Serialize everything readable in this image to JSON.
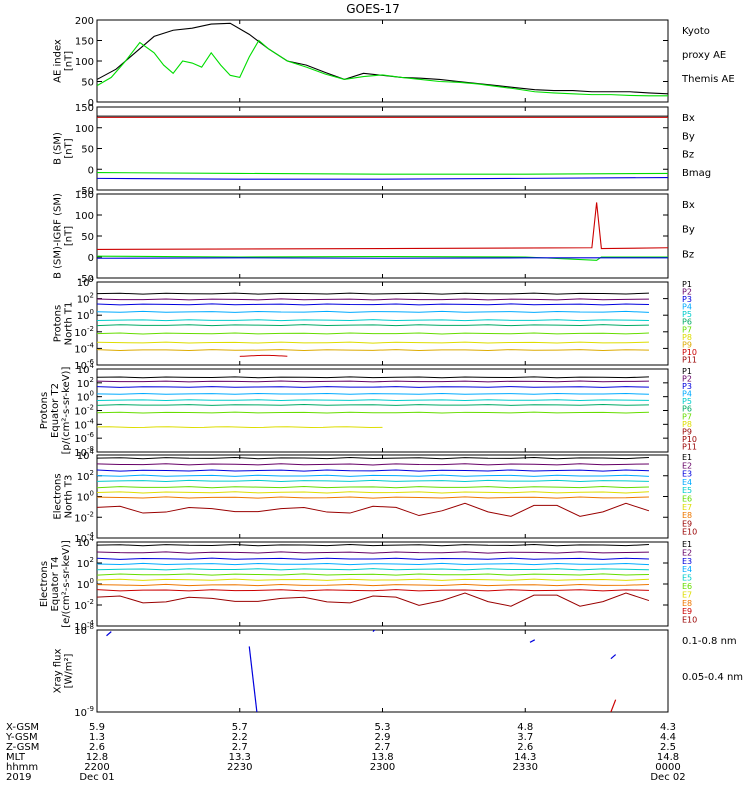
{
  "title": "GOES-17",
  "colors": {
    "black": "#000000",
    "green": "#00dd00",
    "red": "#cc0000",
    "darkred": "#990000",
    "blue": "#0000dd",
    "navy": "#000080",
    "purple": "#660066",
    "cyan": "#00cccc",
    "teal": "#00aaaa",
    "lime": "#66dd00",
    "yellow": "#dddd00",
    "gold": "#ddaa00",
    "orange": "#ee7700",
    "lightblue": "#00aaff",
    "violet": "#880088"
  },
  "chart_data": [
    {
      "id": "ae",
      "type": "line",
      "ylabel": [
        "AE index",
        "[nT]"
      ],
      "ylim": [
        0,
        200
      ],
      "yticks": [
        "0",
        "50",
        "100",
        "150",
        "200"
      ],
      "legend": [
        {
          "name": "Kyoto",
          "color": "#00dd00"
        },
        {
          "name": "proxy AE",
          "color": "#00dd00"
        },
        {
          "name": "Themis AE",
          "color": "#000000"
        }
      ],
      "series": [
        {
          "name": "Themis AE",
          "color": "#000000",
          "x": [
            0,
            4,
            8,
            12,
            16,
            20,
            24,
            28,
            32,
            36,
            40,
            44,
            48,
            52,
            56,
            60,
            64,
            68,
            72,
            76,
            80,
            84,
            88,
            92,
            96,
            100,
            104,
            108,
            112,
            116,
            120
          ],
          "y": [
            55,
            80,
            120,
            160,
            175,
            180,
            190,
            192,
            165,
            130,
            100,
            90,
            72,
            55,
            70,
            65,
            60,
            58,
            55,
            50,
            45,
            40,
            35,
            30,
            28,
            28,
            25,
            25,
            25,
            22,
            20
          ]
        },
        {
          "name": "Kyoto proxy AE",
          "color": "#00dd00",
          "x": [
            0,
            3,
            6,
            9,
            12,
            14,
            16,
            18,
            20,
            22,
            24,
            26,
            28,
            30,
            32,
            34,
            36,
            40,
            44,
            48,
            52,
            56,
            60,
            64,
            68,
            72,
            76,
            80,
            84,
            88,
            92,
            96,
            100,
            104,
            108,
            112,
            116,
            120
          ],
          "y": [
            40,
            60,
            100,
            145,
            120,
            90,
            70,
            100,
            95,
            85,
            120,
            90,
            65,
            60,
            110,
            150,
            130,
            100,
            85,
            68,
            55,
            62,
            66,
            60,
            55,
            50,
            48,
            44,
            38,
            32,
            25,
            22,
            20,
            18,
            18,
            16,
            15,
            15
          ]
        }
      ]
    },
    {
      "id": "bsm",
      "type": "line",
      "ylabel": [
        "B (SM)",
        "[nT]"
      ],
      "ylim": [
        -50,
        150
      ],
      "yticks": [
        "-50",
        "0",
        "50",
        "100",
        "150"
      ],
      "legend": [
        {
          "name": "Bx",
          "color": "#0000dd"
        },
        {
          "name": "By",
          "color": "#00dd00"
        },
        {
          "name": "Bz",
          "color": "#cc0000"
        },
        {
          "name": "Bmag",
          "color": "#000000"
        }
      ],
      "series": [
        {
          "name": "Bmag",
          "color": "#000000",
          "x": [
            0,
            120
          ],
          "y": [
            128,
            128
          ]
        },
        {
          "name": "Bz",
          "color": "#cc0000",
          "x": [
            0,
            120
          ],
          "y": [
            125,
            125
          ]
        },
        {
          "name": "By",
          "color": "#00dd00",
          "x": [
            0,
            30,
            60,
            90,
            120
          ],
          "y": [
            -8,
            -10,
            -12,
            -12,
            -10
          ]
        },
        {
          "name": "Bx",
          "color": "#0000dd",
          "x": [
            0,
            30,
            60,
            90,
            120
          ],
          "y": [
            -22,
            -24,
            -24,
            -22,
            -20
          ]
        }
      ]
    },
    {
      "id": "bigrf",
      "type": "line",
      "ylabel": [
        "B (SM)-IGRF (SM)",
        "[nT]"
      ],
      "ylim": [
        -50,
        150
      ],
      "yticks": [
        "-50",
        "0",
        "50",
        "100",
        "150"
      ],
      "legend": [
        {
          "name": "Bx",
          "color": "#0000dd"
        },
        {
          "name": "By",
          "color": "#00dd00"
        },
        {
          "name": "Bz",
          "color": "#cc0000"
        }
      ],
      "series": [
        {
          "name": "Bz",
          "color": "#cc0000",
          "x": [
            0,
            60,
            104,
            105,
            106,
            120
          ],
          "y": [
            18,
            20,
            22,
            130,
            20,
            22
          ]
        },
        {
          "name": "By",
          "color": "#00dd00",
          "x": [
            0,
            30,
            60,
            90,
            105,
            106,
            120
          ],
          "y": [
            2,
            0,
            1,
            0,
            -8,
            0,
            0
          ]
        },
        {
          "name": "Bx",
          "color": "#0000dd",
          "x": [
            0,
            30,
            60,
            90,
            120
          ],
          "y": [
            -3,
            -2,
            -3,
            -2,
            -2
          ]
        }
      ]
    },
    {
      "id": "protons-t1",
      "type": "line",
      "scale": "log",
      "ylabel": [
        "Protons",
        "North T1"
      ],
      "ylim": [
        -6,
        4
      ],
      "yticks": [
        "10^4",
        "10^2",
        "10^0",
        "10^-2",
        "10^-4",
        "10^-6"
      ],
      "legend": [
        "P1",
        "P2",
        "P3",
        "P4",
        "P5",
        "P6",
        "P7",
        "P8",
        "P9",
        "P10",
        "P11"
      ],
      "series": [
        {
          "name": "P1",
          "color": "#000000",
          "logy": 2.6
        },
        {
          "name": "P2",
          "color": "#660066",
          "logy": 1.9
        },
        {
          "name": "P3",
          "color": "#0000dd",
          "logy": 1.3
        },
        {
          "name": "P4",
          "color": "#00aaff",
          "logy": 0.4
        },
        {
          "name": "P5",
          "color": "#00cccc",
          "logy": -0.6
        },
        {
          "name": "P6",
          "color": "#00aa66",
          "logy": -1.2
        },
        {
          "name": "P7",
          "color": "#66dd00",
          "logy": -2.2
        },
        {
          "name": "P8",
          "color": "#dddd00",
          "logy": -3.3
        },
        {
          "name": "P9",
          "color": "#ddaa00",
          "logy": -4.2
        },
        {
          "name": "P10",
          "color": "#cc0000",
          "logy": -4.9,
          "segment": [
            30,
            40
          ]
        }
      ]
    },
    {
      "id": "protons-t2",
      "type": "line",
      "scale": "log",
      "ylabel": [
        "Protons",
        "Equator T2",
        "[p/(cm²-s-sr-keV)]"
      ],
      "ylim": [
        -8,
        4
      ],
      "yticks": [
        "10^4",
        "10^2",
        "10^0",
        "10^-2",
        "10^-4",
        "10^-6",
        "10^-8"
      ],
      "legend": [
        "P1",
        "P2",
        "P3",
        "P4",
        "P5",
        "P6",
        "P7",
        "P8",
        "P9",
        "P10",
        "P11"
      ],
      "series": [
        {
          "name": "P1",
          "color": "#000000",
          "logy": 2.8
        },
        {
          "name": "P2",
          "color": "#660066",
          "logy": 2.2
        },
        {
          "name": "P3",
          "color": "#0000dd",
          "logy": 1.4
        },
        {
          "name": "P4",
          "color": "#00aaff",
          "logy": 0.4
        },
        {
          "name": "P5",
          "color": "#00cccc",
          "logy": -0.5
        },
        {
          "name": "P6",
          "color": "#00aa66",
          "logy": -1.2
        },
        {
          "name": "P7",
          "color": "#66dd00",
          "logy": -2.3
        },
        {
          "name": "P8",
          "color": "#dddd00",
          "logy": -4.4,
          "segment": [
            0,
            60
          ]
        }
      ]
    },
    {
      "id": "electrons-t3",
      "type": "line",
      "scale": "log",
      "ylabel": [
        "Electrons",
        "North T3"
      ],
      "ylim": [
        -4,
        4
      ],
      "yticks": [
        "10^4",
        "10^2",
        "10^0",
        "10^-2",
        "10^-4"
      ],
      "legend": [
        "E1",
        "E2",
        "E3",
        "E4",
        "E5",
        "E6",
        "E7",
        "E8",
        "E9",
        "E10"
      ],
      "series": [
        {
          "name": "E1",
          "color": "#000000",
          "logy": 3.7
        },
        {
          "name": "E2",
          "color": "#660066",
          "logy": 3.1
        },
        {
          "name": "E3",
          "color": "#0000dd",
          "logy": 2.5
        },
        {
          "name": "E4",
          "color": "#00aaff",
          "logy": 2.0
        },
        {
          "name": "E5",
          "color": "#00cccc",
          "logy": 1.5
        },
        {
          "name": "E6",
          "color": "#66dd00",
          "logy": 0.9
        },
        {
          "name": "E7",
          "color": "#dddd00",
          "logy": 0.4
        },
        {
          "name": "E8",
          "color": "#ee7700",
          "logy": -0.1
        },
        {
          "name": "E9",
          "color": "#990000",
          "logy": -1.3,
          "wavy": true
        }
      ]
    },
    {
      "id": "electrons-t4",
      "type": "line",
      "scale": "log",
      "ylabel": [
        "Electrons",
        "Equator T4",
        "[e/(cm²-s-sr-keV)]"
      ],
      "ylim": [
        -4,
        4
      ],
      "yticks": [
        "10^4",
        "10^2",
        "10^0",
        "10^-2",
        "10^-4"
      ],
      "legend": [
        "E1",
        "E2",
        "E3",
        "E4",
        "E5",
        "E6",
        "E7",
        "E8",
        "E9",
        "E10"
      ],
      "series": [
        {
          "name": "E1",
          "color": "#000000",
          "logy": 3.7
        },
        {
          "name": "E2",
          "color": "#660066",
          "logy": 3.0
        },
        {
          "name": "E3",
          "color": "#0000dd",
          "logy": 2.4
        },
        {
          "name": "E4",
          "color": "#00aaff",
          "logy": 1.9
        },
        {
          "name": "E5",
          "color": "#00cccc",
          "logy": 1.4
        },
        {
          "name": "E6",
          "color": "#66dd00",
          "logy": 0.9
        },
        {
          "name": "E7",
          "color": "#dddd00",
          "logy": 0.4
        },
        {
          "name": "E8",
          "color": "#ee7700",
          "logy": -0.1
        },
        {
          "name": "E9",
          "color": "#cc0000",
          "logy": -0.6
        },
        {
          "name": "E10",
          "color": "#990000",
          "logy": -1.5,
          "wavy": true
        }
      ]
    },
    {
      "id": "xray",
      "type": "line",
      "scale": "log",
      "ylabel": [
        "Xray flux",
        "[W/m²]"
      ],
      "ylim": [
        -9,
        -8
      ],
      "yticks": [
        "10^-8",
        "10^-9"
      ],
      "legend": [
        {
          "name": "0.1-0.8 nm",
          "color": "#cc0000"
        },
        {
          "name": "0.05-0.4 nm",
          "color": "#0000dd"
        }
      ],
      "series": [
        {
          "name": "0.05-0.4 nm",
          "color": "#0000dd",
          "segments": [
            [
              [
                2,
                -8.07
              ],
              [
                3,
                -8.02
              ]
            ],
            [
              [
                32,
                -8.2
              ],
              [
                34,
                -9.2
              ]
            ],
            [
              [
                58,
                -8.02
              ],
              [
                60,
                -7.9
              ]
            ],
            [
              [
                91,
                -8.15
              ],
              [
                92,
                -8.12
              ]
            ],
            [
              [
                108,
                -8.35
              ],
              [
                109,
                -8.3
              ]
            ]
          ]
        },
        {
          "name": "0.1-0.8 nm",
          "color": "#cc0000",
          "segments": [
            [
              [
                108,
                -9.0
              ],
              [
                109,
                -8.85
              ]
            ]
          ]
        }
      ]
    }
  ],
  "axis_table": {
    "row_labels": [
      "X-GSM",
      "Y-GSM",
      "Z-GSM",
      "MLT",
      "hhmm",
      "2019"
    ],
    "columns": [
      [
        "5.9",
        "1.3",
        "2.6",
        "12.8",
        "2200",
        "Dec 01"
      ],
      [
        "5.7",
        "2.2",
        "2.7",
        "13.3",
        "2230",
        ""
      ],
      [
        "5.3",
        "2.9",
        "2.7",
        "13.8",
        "2300",
        ""
      ],
      [
        "4.8",
        "3.7",
        "2.6",
        "14.3",
        "2330",
        ""
      ],
      [
        "4.3",
        "4.4",
        "2.5",
        "14.8",
        "0000",
        "Dec 02"
      ]
    ]
  }
}
